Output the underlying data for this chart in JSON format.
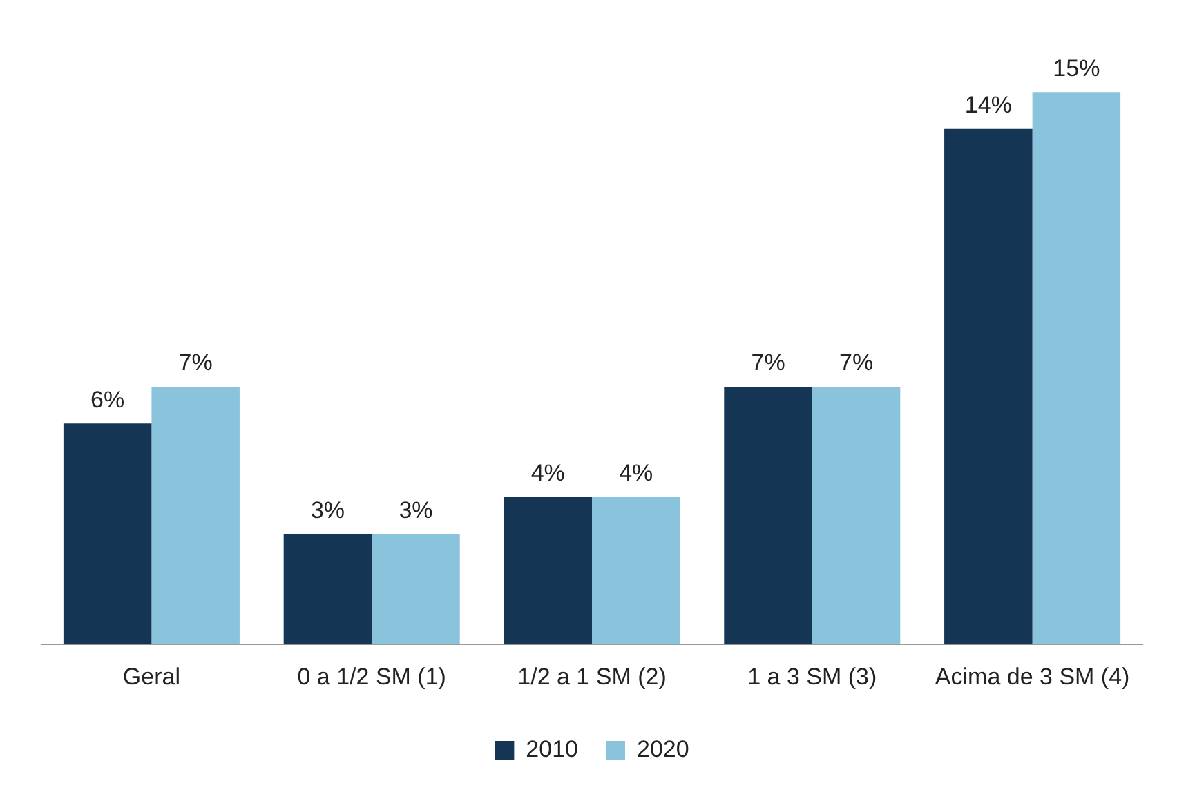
{
  "chart_data": {
    "type": "bar",
    "categories": [
      "Geral",
      "0 a 1/2 SM (1)",
      "1/2 a 1 SM (2)",
      "1 a 3 SM (3)",
      "Acima de 3 SM (4)"
    ],
    "series": [
      {
        "name": "2010",
        "color": "#143554",
        "values": [
          6,
          3,
          4,
          7,
          14
        ],
        "value_labels": [
          "6%",
          "3%",
          "4%",
          "7%",
          "14%"
        ]
      },
      {
        "name": "2020",
        "color": "#8ac4dc",
        "values": [
          7,
          3,
          4,
          7,
          15
        ],
        "value_labels": [
          "7%",
          "3%",
          "4%",
          "7%",
          "15%"
        ]
      }
    ],
    "legend": "bottom",
    "grid": false,
    "tick_labels": "x"
  }
}
